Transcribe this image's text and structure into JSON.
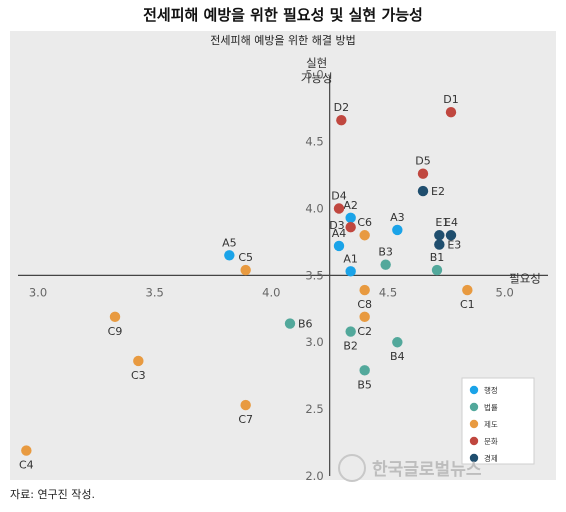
{
  "title": "전세피해 예방을 위한 필요성 및 실현 가능성",
  "source": "자료: 연구진 작성.",
  "watermark": "한국글로벌뉴스",
  "chart_data": {
    "type": "scatter",
    "title": "전세피해 예방을 위한 해결 방법",
    "xlabel": "필요성",
    "ylabel": [
      "실현",
      "가능성"
    ],
    "xlim": [
      2.88,
      5.22
    ],
    "ylim": [
      1.97,
      5.2
    ],
    "x_cross": 4.25,
    "y_cross": 3.5,
    "x_ticks": [
      3.0,
      3.5,
      4.0,
      4.5,
      5.0
    ],
    "x_tick_labels": [
      "3.0",
      "3.5",
      "4.0",
      "4.5",
      "5.0"
    ],
    "y_ticks": [
      5.0,
      4.5,
      4.0,
      3.5,
      3.0,
      2.5,
      2.0
    ],
    "y_tick_labels": [
      "5.0",
      "4.5",
      "4.0",
      "3.5",
      "3.0",
      "2.5",
      "2.0"
    ],
    "grid": false,
    "legend_position": "bottom-right",
    "series": [
      {
        "name": "행정",
        "color": "#1aa3e8",
        "points": [
          {
            "label": "A1",
            "x": 4.34,
            "y": 3.53,
            "label_pos": "above"
          },
          {
            "label": "A2",
            "x": 4.34,
            "y": 3.93,
            "label_pos": "above"
          },
          {
            "label": "A3",
            "x": 4.54,
            "y": 3.84,
            "label_pos": "above"
          },
          {
            "label": "A4",
            "x": 4.29,
            "y": 3.72,
            "label_pos": "above"
          },
          {
            "label": "A5",
            "x": 3.82,
            "y": 3.65,
            "label_pos": "above"
          }
        ]
      },
      {
        "name": "법률",
        "color": "#52a89b",
        "points": [
          {
            "label": "B1",
            "x": 4.71,
            "y": 3.54,
            "label_pos": "above"
          },
          {
            "label": "B2",
            "x": 4.34,
            "y": 3.08,
            "label_pos": "below"
          },
          {
            "label": "B3",
            "x": 4.49,
            "y": 3.58,
            "label_pos": "above"
          },
          {
            "label": "B4",
            "x": 4.54,
            "y": 3.0,
            "label_pos": "below"
          },
          {
            "label": "B5",
            "x": 4.4,
            "y": 2.79,
            "label_pos": "below"
          },
          {
            "label": "B6",
            "x": 4.08,
            "y": 3.14,
            "label_pos": "right"
          }
        ]
      },
      {
        "name": "제도",
        "color": "#e89a40",
        "points": [
          {
            "label": "C1",
            "x": 4.84,
            "y": 3.39,
            "label_pos": "below"
          },
          {
            "label": "C2",
            "x": 4.4,
            "y": 3.19,
            "label_pos": "below"
          },
          {
            "label": "C4",
            "x": 2.95,
            "y": 2.19,
            "label_pos": "below"
          },
          {
            "label": "C5",
            "x": 3.89,
            "y": 3.54,
            "label_pos": "above"
          },
          {
            "label": "C6",
            "x": 4.4,
            "y": 3.8,
            "label_pos": "above"
          },
          {
            "label": "C7",
            "x": 3.89,
            "y": 2.53,
            "label_pos": "below"
          },
          {
            "label": "C8",
            "x": 4.4,
            "y": 3.39,
            "label_pos": "below"
          },
          {
            "label": "C9",
            "x": 3.33,
            "y": 3.19,
            "label_pos": "below"
          },
          {
            "label": "C3",
            "x": 3.43,
            "y": 2.86,
            "label_pos": "below"
          }
        ]
      },
      {
        "name": "문화",
        "color": "#c0473f",
        "points": [
          {
            "label": "D1",
            "x": 4.77,
            "y": 4.72,
            "label_pos": "above"
          },
          {
            "label": "D2",
            "x": 4.3,
            "y": 4.66,
            "label_pos": "above"
          },
          {
            "label": "D3",
            "x": 4.34,
            "y": 3.86,
            "label_pos": "below-left"
          },
          {
            "label": "D4",
            "x": 4.29,
            "y": 4.0,
            "label_pos": "above"
          },
          {
            "label": "D5",
            "x": 4.65,
            "y": 4.26,
            "label_pos": "above"
          }
        ]
      },
      {
        "name": "경제",
        "color": "#1f4e6e",
        "points": [
          {
            "label": "E1",
            "x": 4.72,
            "y": 3.8,
            "label_pos": "above-right"
          },
          {
            "label": "E2",
            "x": 4.65,
            "y": 4.13,
            "label_pos": "right"
          },
          {
            "label": "E3",
            "x": 4.72,
            "y": 3.73,
            "label_pos": "right"
          },
          {
            "label": "E4",
            "x": 4.77,
            "y": 3.8,
            "label_pos": "above"
          }
        ]
      }
    ]
  }
}
